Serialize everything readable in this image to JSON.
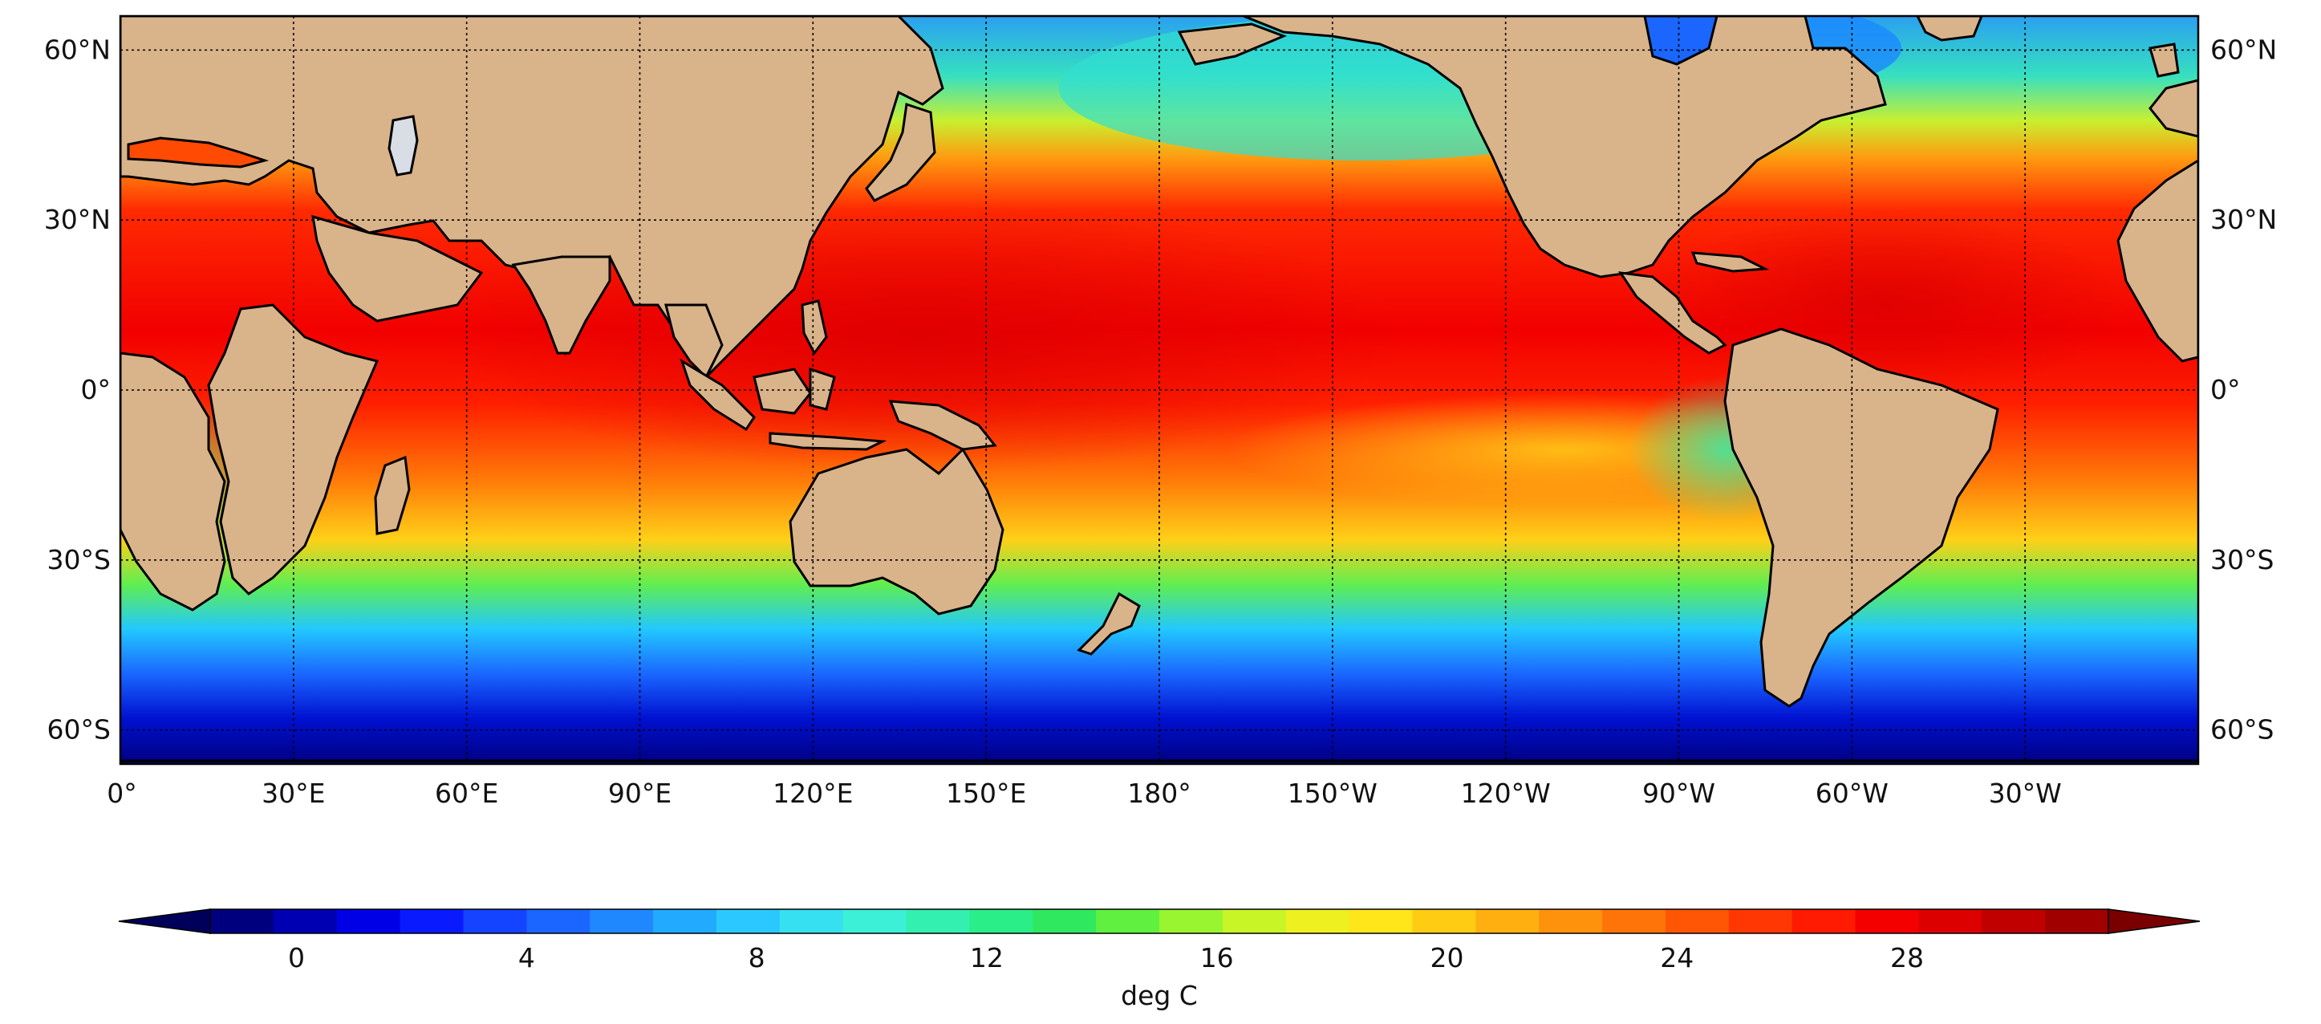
{
  "map": {
    "lat_labels_left": [
      "60°N",
      "30°N",
      "0°",
      "30°S",
      "60°S"
    ],
    "lat_labels_right": [
      "60°N",
      "30°N",
      "0°",
      "30°S",
      "60°S"
    ],
    "lon_labels": [
      "0°",
      "30°E",
      "60°E",
      "90°E",
      "120°E",
      "150°E",
      "180°",
      "150°W",
      "120°W",
      "90°W",
      "60°W",
      "30°W"
    ],
    "lon_range": [
      0,
      360
    ],
    "lat_range": [
      -66,
      66
    ],
    "land_color": "#d9b38a",
    "grid": "dotted"
  },
  "colorbar": {
    "label": "deg C",
    "tick_labels": [
      "0",
      "4",
      "8",
      "12",
      "16",
      "20",
      "24",
      "28"
    ],
    "range": [
      -1.5,
      31.5
    ],
    "extend": "both",
    "colors": [
      "#00007f",
      "#0000b3",
      "#0000e6",
      "#0a1aff",
      "#1444ff",
      "#1a66ff",
      "#1f88ff",
      "#22aaff",
      "#2bc8ff",
      "#36e0f0",
      "#3cf0d8",
      "#33f0b0",
      "#2aee88",
      "#30e860",
      "#60f040",
      "#98f530",
      "#c8f525",
      "#eef020",
      "#ffe61a",
      "#ffcc14",
      "#ffb010",
      "#ff920c",
      "#ff7408",
      "#ff5605",
      "#ff3803",
      "#ff1a01",
      "#f50000",
      "#dd0000",
      "#c00000",
      "#a00000"
    ]
  }
}
